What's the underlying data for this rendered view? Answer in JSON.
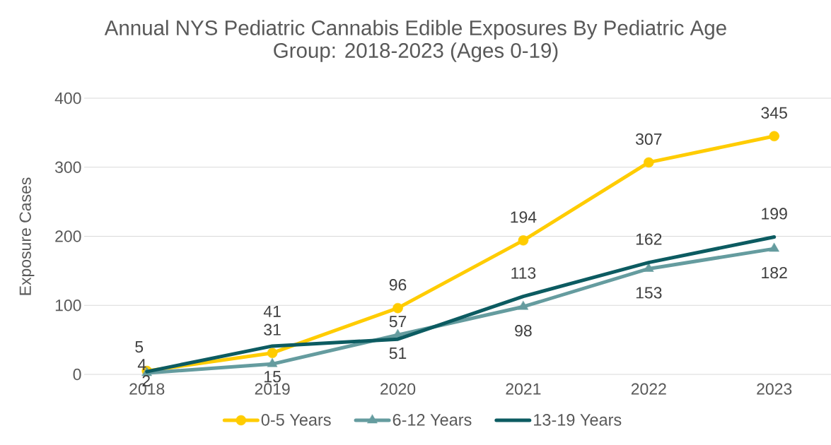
{
  "chart_data": {
    "type": "line",
    "title": "Annual NYS Pediatric Cannabis Edible Exposures By Pediatric Age Group: 2018-2023 (Ages 0-19)",
    "ylabel": "Exposure Cases",
    "categories": [
      "2018",
      "2019",
      "2020",
      "2021",
      "2022",
      "2023"
    ],
    "series": [
      {
        "name": "0-5 Years",
        "color": "#FFCC00",
        "marker": "circle",
        "values": [
          5,
          31,
          96,
          194,
          307,
          345
        ]
      },
      {
        "name": "6-12 Years",
        "color": "#659C9F",
        "marker": "triangle",
        "values": [
          2,
          15,
          57,
          98,
          153,
          182
        ]
      },
      {
        "name": "13-19 Years",
        "color": "#0C5B61",
        "marker": "none",
        "values": [
          4,
          41,
          51,
          113,
          162,
          199
        ]
      }
    ],
    "ylim": [
      0,
      400
    ],
    "yticks": [
      0,
      100,
      200,
      300,
      400
    ],
    "grid": "y",
    "legend": "bottom",
    "data_labels": true,
    "line_style": "solid"
  }
}
